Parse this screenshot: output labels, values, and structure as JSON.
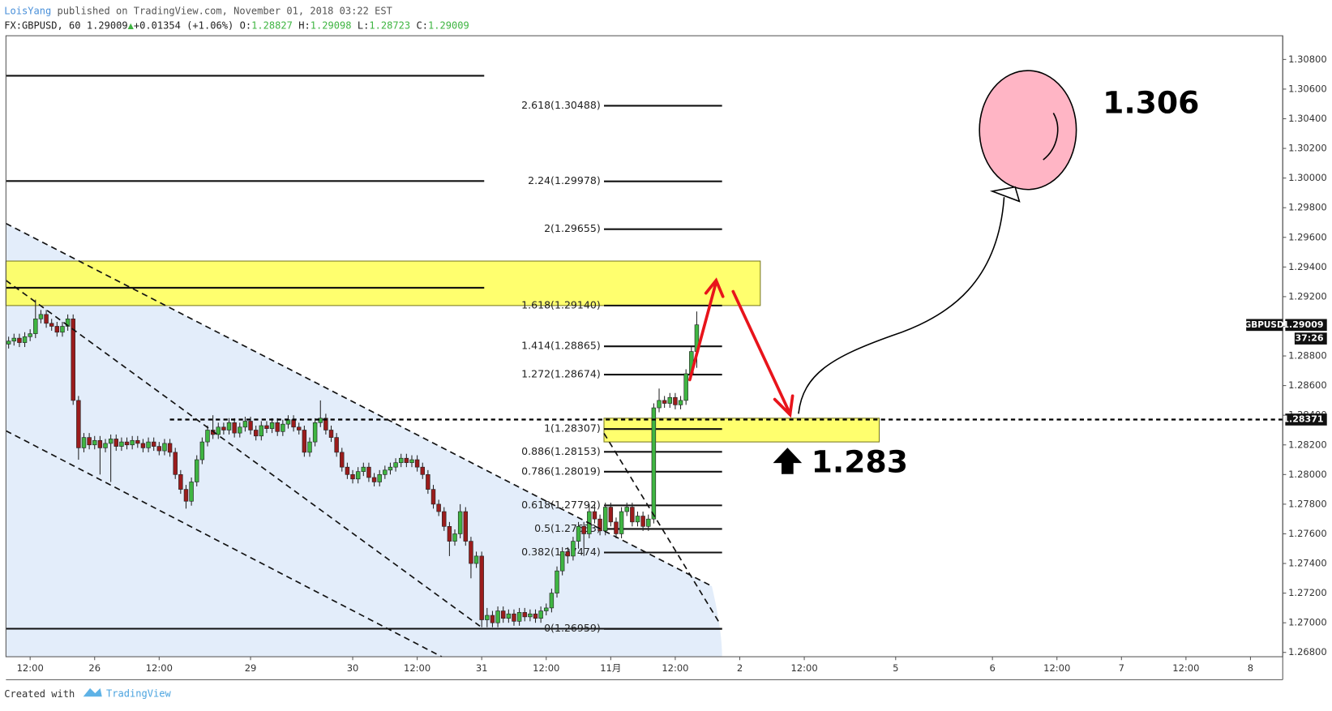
{
  "header": {
    "author": "LoisYang",
    "published": " published on TradingView.com, November 01, 2018 03:22 EST",
    "symbol": "FX:GBPUSD, 60",
    "last": "1.29009",
    "arrow": "▲",
    "change": "+0.01354 (+1.06%)",
    "ohlc": [
      {
        "label": "O:",
        "value": "1.28827"
      },
      {
        "label": "H:",
        "value": "1.29098"
      },
      {
        "label": "L:",
        "value": "1.28723"
      },
      {
        "label": "C:",
        "value": "1.29009"
      }
    ]
  },
  "footer": {
    "created": "Created with",
    "brand": "TradingView"
  },
  "chart_data": {
    "type": "candlestick",
    "up_color": "#3fb542",
    "down_color": "#9b1c1c",
    "xlim": [
      -0.5,
      237
    ],
    "ylim": [
      1.26771,
      1.3096
    ],
    "xticks": [
      {
        "value": 4,
        "label": "12:00"
      },
      {
        "value": 16,
        "label": "26"
      },
      {
        "value": 28,
        "label": "12:00"
      },
      {
        "value": 45,
        "label": "29"
      },
      {
        "value": 64,
        "label": "30"
      },
      {
        "value": 76,
        "label": "12:00"
      },
      {
        "value": 88,
        "label": "31"
      },
      {
        "value": 100,
        "label": "12:00"
      },
      {
        "value": 112,
        "label": "11月"
      },
      {
        "value": 124,
        "label": "12:00"
      },
      {
        "value": 136,
        "label": "2"
      },
      {
        "value": 148,
        "label": "12:00"
      },
      {
        "value": 165,
        "label": "5"
      },
      {
        "value": 183,
        "label": "6"
      },
      {
        "value": 195,
        "label": "12:00"
      },
      {
        "value": 207,
        "label": "7"
      },
      {
        "value": 219,
        "label": "12:00"
      },
      {
        "value": 231,
        "label": "8"
      }
    ],
    "yticks": [
      {
        "value": 1.268,
        "label": "1.26800"
      },
      {
        "value": 1.27,
        "label": "1.27000"
      },
      {
        "value": 1.272,
        "label": "1.27200"
      },
      {
        "value": 1.274,
        "label": "1.27400"
      },
      {
        "value": 1.276,
        "label": "1.27600"
      },
      {
        "value": 1.278,
        "label": "1.27800"
      },
      {
        "value": 1.28,
        "label": "1.28000"
      },
      {
        "value": 1.282,
        "label": "1.28200"
      },
      {
        "value": 1.284,
        "label": "1.28400"
      },
      {
        "value": 1.286,
        "label": "1.28600"
      },
      {
        "value": 1.288,
        "label": "1.28800"
      },
      {
        "value": 1.29,
        "label": "1.29000"
      },
      {
        "value": 1.292,
        "label": "1.29200"
      },
      {
        "value": 1.294,
        "label": "1.29400"
      },
      {
        "value": 1.296,
        "label": "1.29600"
      },
      {
        "value": 1.298,
        "label": "1.29800"
      },
      {
        "value": 1.3,
        "label": "1.30000"
      },
      {
        "value": 1.302,
        "label": "1.30200"
      },
      {
        "value": 1.304,
        "label": "1.30400"
      },
      {
        "value": 1.306,
        "label": "1.30600"
      },
      {
        "value": 1.308,
        "label": "1.30800"
      }
    ],
    "ohlc": [
      [
        1.2888,
        1.2893,
        1.2885,
        1.289
      ],
      [
        1.289,
        1.2895,
        1.2887,
        1.2892
      ],
      [
        1.2892,
        1.2895,
        1.2886,
        1.2889
      ],
      [
        1.2889,
        1.2896,
        1.2886,
        1.2893
      ],
      [
        1.2893,
        1.2898,
        1.289,
        1.2895
      ],
      [
        1.2895,
        1.2918,
        1.2892,
        1.2905
      ],
      [
        1.2905,
        1.2911,
        1.2902,
        1.2908
      ],
      [
        1.2908,
        1.2911,
        1.2899,
        1.2902
      ],
      [
        1.2902,
        1.2905,
        1.2897,
        1.29
      ],
      [
        1.29,
        1.2903,
        1.2893,
        1.2896
      ],
      [
        1.2896,
        1.2903,
        1.2893,
        1.29
      ],
      [
        1.29,
        1.2908,
        1.2897,
        1.2905
      ],
      [
        1.2905,
        1.2908,
        1.2847,
        1.285
      ],
      [
        1.285,
        1.2853,
        1.281,
        1.2818
      ],
      [
        1.2818,
        1.2828,
        1.2815,
        1.2825
      ],
      [
        1.2825,
        1.2828,
        1.2817,
        1.282
      ],
      [
        1.282,
        1.2826,
        1.2817,
        1.2823
      ],
      [
        1.2823,
        1.2826,
        1.28,
        1.2818
      ],
      [
        1.2818,
        1.2824,
        1.2815,
        1.2821
      ],
      [
        1.2821,
        1.2827,
        1.2795,
        1.2824
      ],
      [
        1.2824,
        1.2827,
        1.2816,
        1.2819
      ],
      [
        1.2819,
        1.2825,
        1.2816,
        1.2822
      ],
      [
        1.2822,
        1.2825,
        1.2817,
        1.282
      ],
      [
        1.282,
        1.2826,
        1.2817,
        1.2823
      ],
      [
        1.2823,
        1.2826,
        1.2818,
        1.2821
      ],
      [
        1.2821,
        1.2824,
        1.2815,
        1.2818
      ],
      [
        1.2818,
        1.2825,
        1.2815,
        1.2822
      ],
      [
        1.2822,
        1.2825,
        1.2816,
        1.2819
      ],
      [
        1.2819,
        1.2822,
        1.2813,
        1.2816
      ],
      [
        1.2816,
        1.2824,
        1.2813,
        1.2821
      ],
      [
        1.2821,
        1.2824,
        1.2812,
        1.2815
      ],
      [
        1.2815,
        1.2818,
        1.2797,
        1.28
      ],
      [
        1.28,
        1.2803,
        1.2787,
        1.279
      ],
      [
        1.279,
        1.2793,
        1.2777,
        1.2782
      ],
      [
        1.2782,
        1.2798,
        1.2779,
        1.2795
      ],
      [
        1.2795,
        1.2813,
        1.2792,
        1.281
      ],
      [
        1.281,
        1.2825,
        1.2807,
        1.2822
      ],
      [
        1.2822,
        1.2833,
        1.2819,
        1.283
      ],
      [
        1.283,
        1.284,
        1.2824,
        1.2827
      ],
      [
        1.2827,
        1.2835,
        1.2824,
        1.2832
      ],
      [
        1.2832,
        1.2835,
        1.2827,
        1.283
      ],
      [
        1.283,
        1.2838,
        1.2827,
        1.2835
      ],
      [
        1.2835,
        1.2838,
        1.2825,
        1.2828
      ],
      [
        1.2828,
        1.2835,
        1.2825,
        1.2832
      ],
      [
        1.2832,
        1.2839,
        1.2829,
        1.2836
      ],
      [
        1.2836,
        1.2839,
        1.2827,
        1.283
      ],
      [
        1.283,
        1.2833,
        1.2823,
        1.2826
      ],
      [
        1.2826,
        1.2836,
        1.2823,
        1.2833
      ],
      [
        1.2833,
        1.2836,
        1.2828,
        1.2831
      ],
      [
        1.2831,
        1.2838,
        1.2828,
        1.2835
      ],
      [
        1.2835,
        1.2838,
        1.2826,
        1.2829
      ],
      [
        1.2829,
        1.2837,
        1.2826,
        1.2834
      ],
      [
        1.2834,
        1.284,
        1.2831,
        1.2837
      ],
      [
        1.2837,
        1.284,
        1.2829,
        1.2832
      ],
      [
        1.2832,
        1.2835,
        1.2827,
        1.283
      ],
      [
        1.283,
        1.2833,
        1.2812,
        1.2815
      ],
      [
        1.2815,
        1.2825,
        1.2812,
        1.2822
      ],
      [
        1.2822,
        1.2838,
        1.2819,
        1.2835
      ],
      [
        1.2835,
        1.285,
        1.2832,
        1.2838
      ],
      [
        1.2838,
        1.2841,
        1.2827,
        1.283
      ],
      [
        1.283,
        1.2833,
        1.2822,
        1.2825
      ],
      [
        1.2825,
        1.2828,
        1.2812,
        1.2815
      ],
      [
        1.2815,
        1.2818,
        1.2802,
        1.2805
      ],
      [
        1.2805,
        1.2808,
        1.2797,
        1.28
      ],
      [
        1.28,
        1.2803,
        1.2794,
        1.2797
      ],
      [
        1.2797,
        1.2805,
        1.2794,
        1.2802
      ],
      [
        1.2802,
        1.2808,
        1.2799,
        1.2805
      ],
      [
        1.2805,
        1.2808,
        1.2795,
        1.2798
      ],
      [
        1.2798,
        1.2801,
        1.2792,
        1.2795
      ],
      [
        1.2795,
        1.2803,
        1.2792,
        1.28
      ],
      [
        1.28,
        1.2806,
        1.2797,
        1.2803
      ],
      [
        1.2803,
        1.2808,
        1.28,
        1.2805
      ],
      [
        1.2805,
        1.2811,
        1.2802,
        1.2808
      ],
      [
        1.2808,
        1.2814,
        1.2805,
        1.2811
      ],
      [
        1.2811,
        1.2814,
        1.2805,
        1.2808
      ],
      [
        1.2808,
        1.2813,
        1.2805,
        1.281
      ],
      [
        1.281,
        1.2813,
        1.2802,
        1.2805
      ],
      [
        1.2805,
        1.2808,
        1.2797,
        1.28
      ],
      [
        1.28,
        1.2803,
        1.2787,
        1.279
      ],
      [
        1.279,
        1.2793,
        1.2777,
        1.278
      ],
      [
        1.278,
        1.2783,
        1.2772,
        1.2775
      ],
      [
        1.2775,
        1.2778,
        1.2762,
        1.2765
      ],
      [
        1.2765,
        1.2768,
        1.2745,
        1.2755
      ],
      [
        1.2755,
        1.2763,
        1.2752,
        1.276
      ],
      [
        1.276,
        1.278,
        1.2757,
        1.2775
      ],
      [
        1.2775,
        1.2778,
        1.2752,
        1.2755
      ],
      [
        1.2755,
        1.2758,
        1.273,
        1.274
      ],
      [
        1.274,
        1.2748,
        1.2737,
        1.2745
      ],
      [
        1.2745,
        1.2748,
        1.2697,
        1.2702
      ],
      [
        1.2702,
        1.271,
        1.2697,
        1.2705
      ],
      [
        1.2705,
        1.2708,
        1.2697,
        1.27
      ],
      [
        1.27,
        1.2711,
        1.2697,
        1.2708
      ],
      [
        1.2708,
        1.2711,
        1.27,
        1.2703
      ],
      [
        1.2703,
        1.2709,
        1.27,
        1.2706
      ],
      [
        1.2706,
        1.2709,
        1.2698,
        1.2701
      ],
      [
        1.2701,
        1.271,
        1.2698,
        1.2707
      ],
      [
        1.2707,
        1.271,
        1.2701,
        1.2704
      ],
      [
        1.2704,
        1.2709,
        1.2701,
        1.2706
      ],
      [
        1.2706,
        1.2709,
        1.27,
        1.2703
      ],
      [
        1.2703,
        1.2711,
        1.27,
        1.2708
      ],
      [
        1.2708,
        1.2713,
        1.2705,
        1.271
      ],
      [
        1.271,
        1.2723,
        1.2707,
        1.272
      ],
      [
        1.272,
        1.2738,
        1.2717,
        1.2735
      ],
      [
        1.2735,
        1.2751,
        1.2732,
        1.2748
      ],
      [
        1.2748,
        1.2751,
        1.274,
        1.2745
      ],
      [
        1.2745,
        1.2758,
        1.2742,
        1.2755
      ],
      [
        1.2755,
        1.2768,
        1.275,
        1.2765
      ],
      [
        1.2765,
        1.2768,
        1.2745,
        1.276
      ],
      [
        1.276,
        1.278,
        1.2757,
        1.2775
      ],
      [
        1.2775,
        1.278,
        1.2767,
        1.277
      ],
      [
        1.277,
        1.2773,
        1.2759,
        1.2762
      ],
      [
        1.2762,
        1.2781,
        1.2759,
        1.2778
      ],
      [
        1.2778,
        1.2781,
        1.2765,
        1.2768
      ],
      [
        1.2768,
        1.2771,
        1.2757,
        1.276
      ],
      [
        1.276,
        1.2778,
        1.2757,
        1.2775
      ],
      [
        1.2775,
        1.2781,
        1.2772,
        1.2778
      ],
      [
        1.2778,
        1.2781,
        1.2765,
        1.2768
      ],
      [
        1.2768,
        1.2775,
        1.2765,
        1.2772
      ],
      [
        1.2772,
        1.2775,
        1.2762,
        1.2765
      ],
      [
        1.2765,
        1.2773,
        1.2762,
        1.277
      ],
      [
        1.277,
        1.2848,
        1.2767,
        1.2845
      ],
      [
        1.2845,
        1.2858,
        1.2842,
        1.285
      ],
      [
        1.285,
        1.2853,
        1.2845,
        1.2848
      ],
      [
        1.2848,
        1.2855,
        1.2845,
        1.2852
      ],
      [
        1.2852,
        1.2855,
        1.2844,
        1.2847
      ],
      [
        1.2847,
        1.2853,
        1.2844,
        1.285
      ],
      [
        1.285,
        1.2871,
        1.2847,
        1.2868
      ],
      [
        1.2868,
        1.2886,
        1.2865,
        1.2883
      ],
      [
        1.2883,
        1.291,
        1.2872,
        1.2901
      ]
    ],
    "fib_levels": [
      {
        "label": "2.618(1.30488)",
        "value": 1.30488
      },
      {
        "label": "2.24(1.29978)",
        "value": 1.29978
      },
      {
        "label": "2(1.29655)",
        "value": 1.29655
      },
      {
        "label": "1.618(1.29140)",
        "value": 1.2914
      },
      {
        "label": "1.414(1.28865)",
        "value": 1.28865
      },
      {
        "label": "1.272(1.28674)",
        "value": 1.28674
      },
      {
        "label": "1(1.28307)",
        "value": 1.28307
      },
      {
        "label": "0.886(1.28153)",
        "value": 1.28153
      },
      {
        "label": "0.786(1.28019)",
        "value": 1.28019
      },
      {
        "label": "0.618(1.27792)",
        "value": 1.27792
      },
      {
        "label": "0.5(1.27633)",
        "value": 1.27633
      },
      {
        "label": "0.382(1.27474)",
        "value": 1.27474
      },
      {
        "label": "0(1.26959)",
        "value": 1.26959
      }
    ],
    "horizontal_lines": [
      1.3069,
      1.2998,
      1.2926,
      1.2696
    ],
    "zones": [
      {
        "from": 1.2914,
        "to": 1.2944
      },
      {
        "from": 1.2822,
        "to": 1.2838
      }
    ],
    "dashed_line": 1.28371,
    "last_price": {
      "symbol": "GBPUSD",
      "value": 1.29009,
      "timer": "37:26"
    },
    "annotations": [
      "1.306",
      "1.283"
    ]
  }
}
